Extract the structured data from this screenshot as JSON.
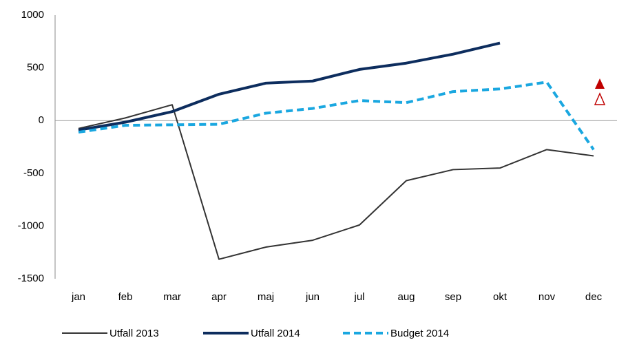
{
  "chart_data": {
    "type": "line",
    "categories": [
      "jan",
      "feb",
      "mar",
      "apr",
      "maj",
      "jun",
      "jul",
      "aug",
      "sep",
      "okt",
      "nov",
      "dec"
    ],
    "series": [
      {
        "name": "Utfall 2013",
        "color": "#333333",
        "width": 2,
        "dash": false,
        "values": [
          -75,
          25,
          150,
          -1315,
          -1200,
          -1135,
          -990,
          -570,
          -465,
          -450,
          -275,
          -335
        ]
      },
      {
        "name": "Utfall 2014",
        "color": "#0d2d5e",
        "width": 4,
        "dash": false,
        "values": [
          -90,
          -15,
          85,
          250,
          355,
          375,
          485,
          545,
          630,
          735,
          null,
          null
        ]
      },
      {
        "name": "Budget 2014",
        "color": "#1aa7e0",
        "width": 4,
        "dash": true,
        "values": [
          -110,
          -45,
          -40,
          -35,
          70,
          115,
          190,
          170,
          275,
          300,
          365,
          -275
        ]
      }
    ],
    "ylim": [
      -1500,
      1000
    ],
    "yticks": [
      -1500,
      -1000,
      -500,
      0,
      500,
      1000
    ],
    "grid": false
  }
}
